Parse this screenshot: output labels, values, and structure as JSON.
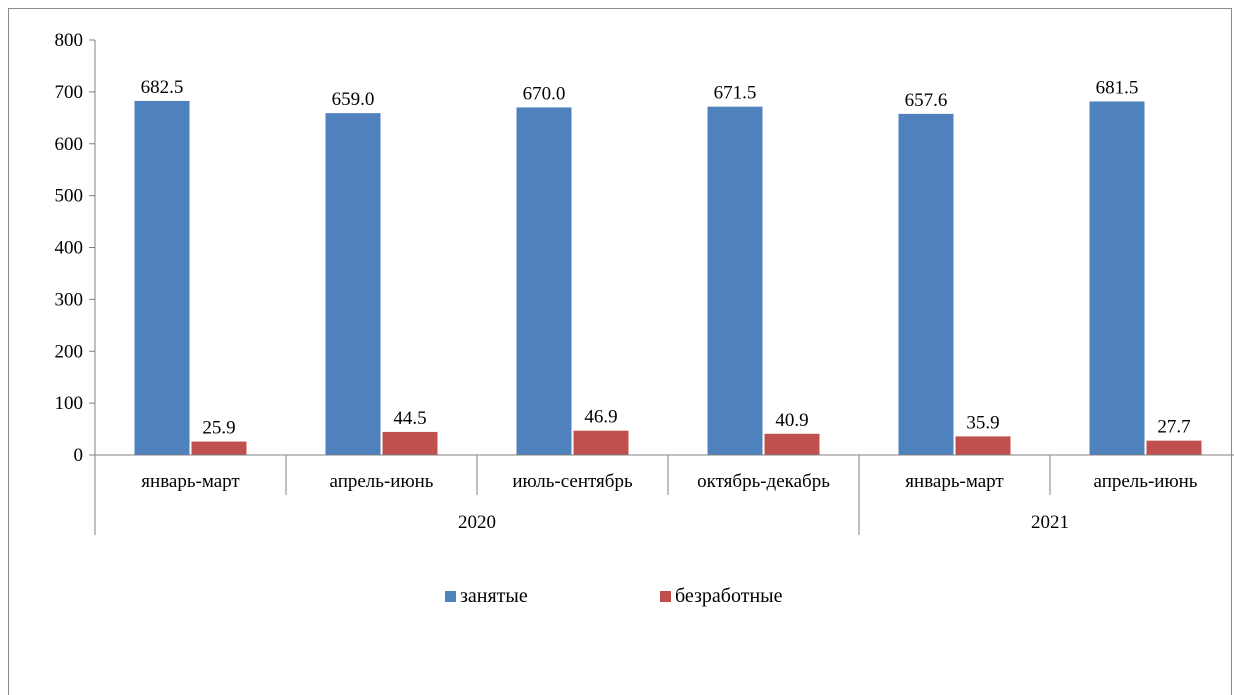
{
  "chart_data": {
    "type": "bar",
    "ylim": [
      0,
      800
    ],
    "yticks": [
      0,
      100,
      200,
      300,
      400,
      500,
      600,
      700,
      800
    ],
    "categories": [
      "январь-март",
      "апрель-июнь",
      "июль-сентябрь",
      "октябрь-декабрь",
      "январь-март",
      "апрель-июнь"
    ],
    "groups": [
      {
        "label": "2020",
        "span": 4
      },
      {
        "label": "2021",
        "span": 2
      }
    ],
    "series": [
      {
        "name": "занятые",
        "color": "#4F81BD",
        "values": [
          682.5,
          659.0,
          670.0,
          671.5,
          657.6,
          681.5
        ],
        "labels": [
          "682.5",
          "659.0",
          "670.0",
          "671.5",
          "657.6",
          "681.5"
        ]
      },
      {
        "name": "безработные",
        "color": "#C0504D",
        "values": [
          25.9,
          44.5,
          46.9,
          40.9,
          35.9,
          27.7
        ],
        "labels": [
          "25.9",
          "44.5",
          "46.9",
          "40.9",
          "35.9",
          "27.7"
        ]
      }
    ],
    "legend_position": "bottom",
    "grid": false
  }
}
